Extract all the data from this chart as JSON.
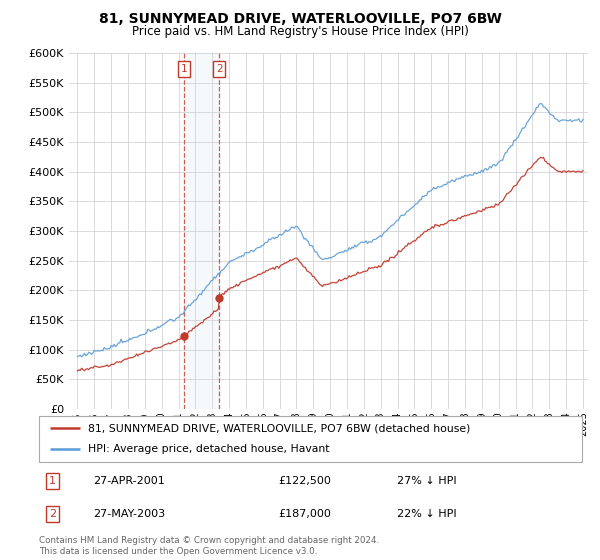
{
  "title": "81, SUNNYMEAD DRIVE, WATERLOOVILLE, PO7 6BW",
  "subtitle": "Price paid vs. HM Land Registry's House Price Index (HPI)",
  "ylim": [
    0,
    600000
  ],
  "yticks": [
    0,
    50000,
    100000,
    150000,
    200000,
    250000,
    300000,
    350000,
    400000,
    450000,
    500000,
    550000,
    600000
  ],
  "xlim_start": 1994.5,
  "xlim_end": 2025.3,
  "hpi_color": "#5b9bd5",
  "price_color": "#c0392b",
  "sale1_date": "27-APR-2001",
  "sale1_price": 122500,
  "sale1_pct": "27% ↓ HPI",
  "sale1_year": 2001.32,
  "sale2_date": "27-MAY-2003",
  "sale2_price": 187000,
  "sale2_pct": "22% ↓ HPI",
  "sale2_year": 2003.41,
  "legend_label_red": "81, SUNNYMEAD DRIVE, WATERLOOVILLE, PO7 6BW (detached house)",
  "legend_label_blue": "HPI: Average price, detached house, Havant",
  "footer": "Contains HM Land Registry data © Crown copyright and database right 2024.\nThis data is licensed under the Open Government Licence v3.0.",
  "background_color": "#ffffff",
  "grid_color": "#cccccc"
}
